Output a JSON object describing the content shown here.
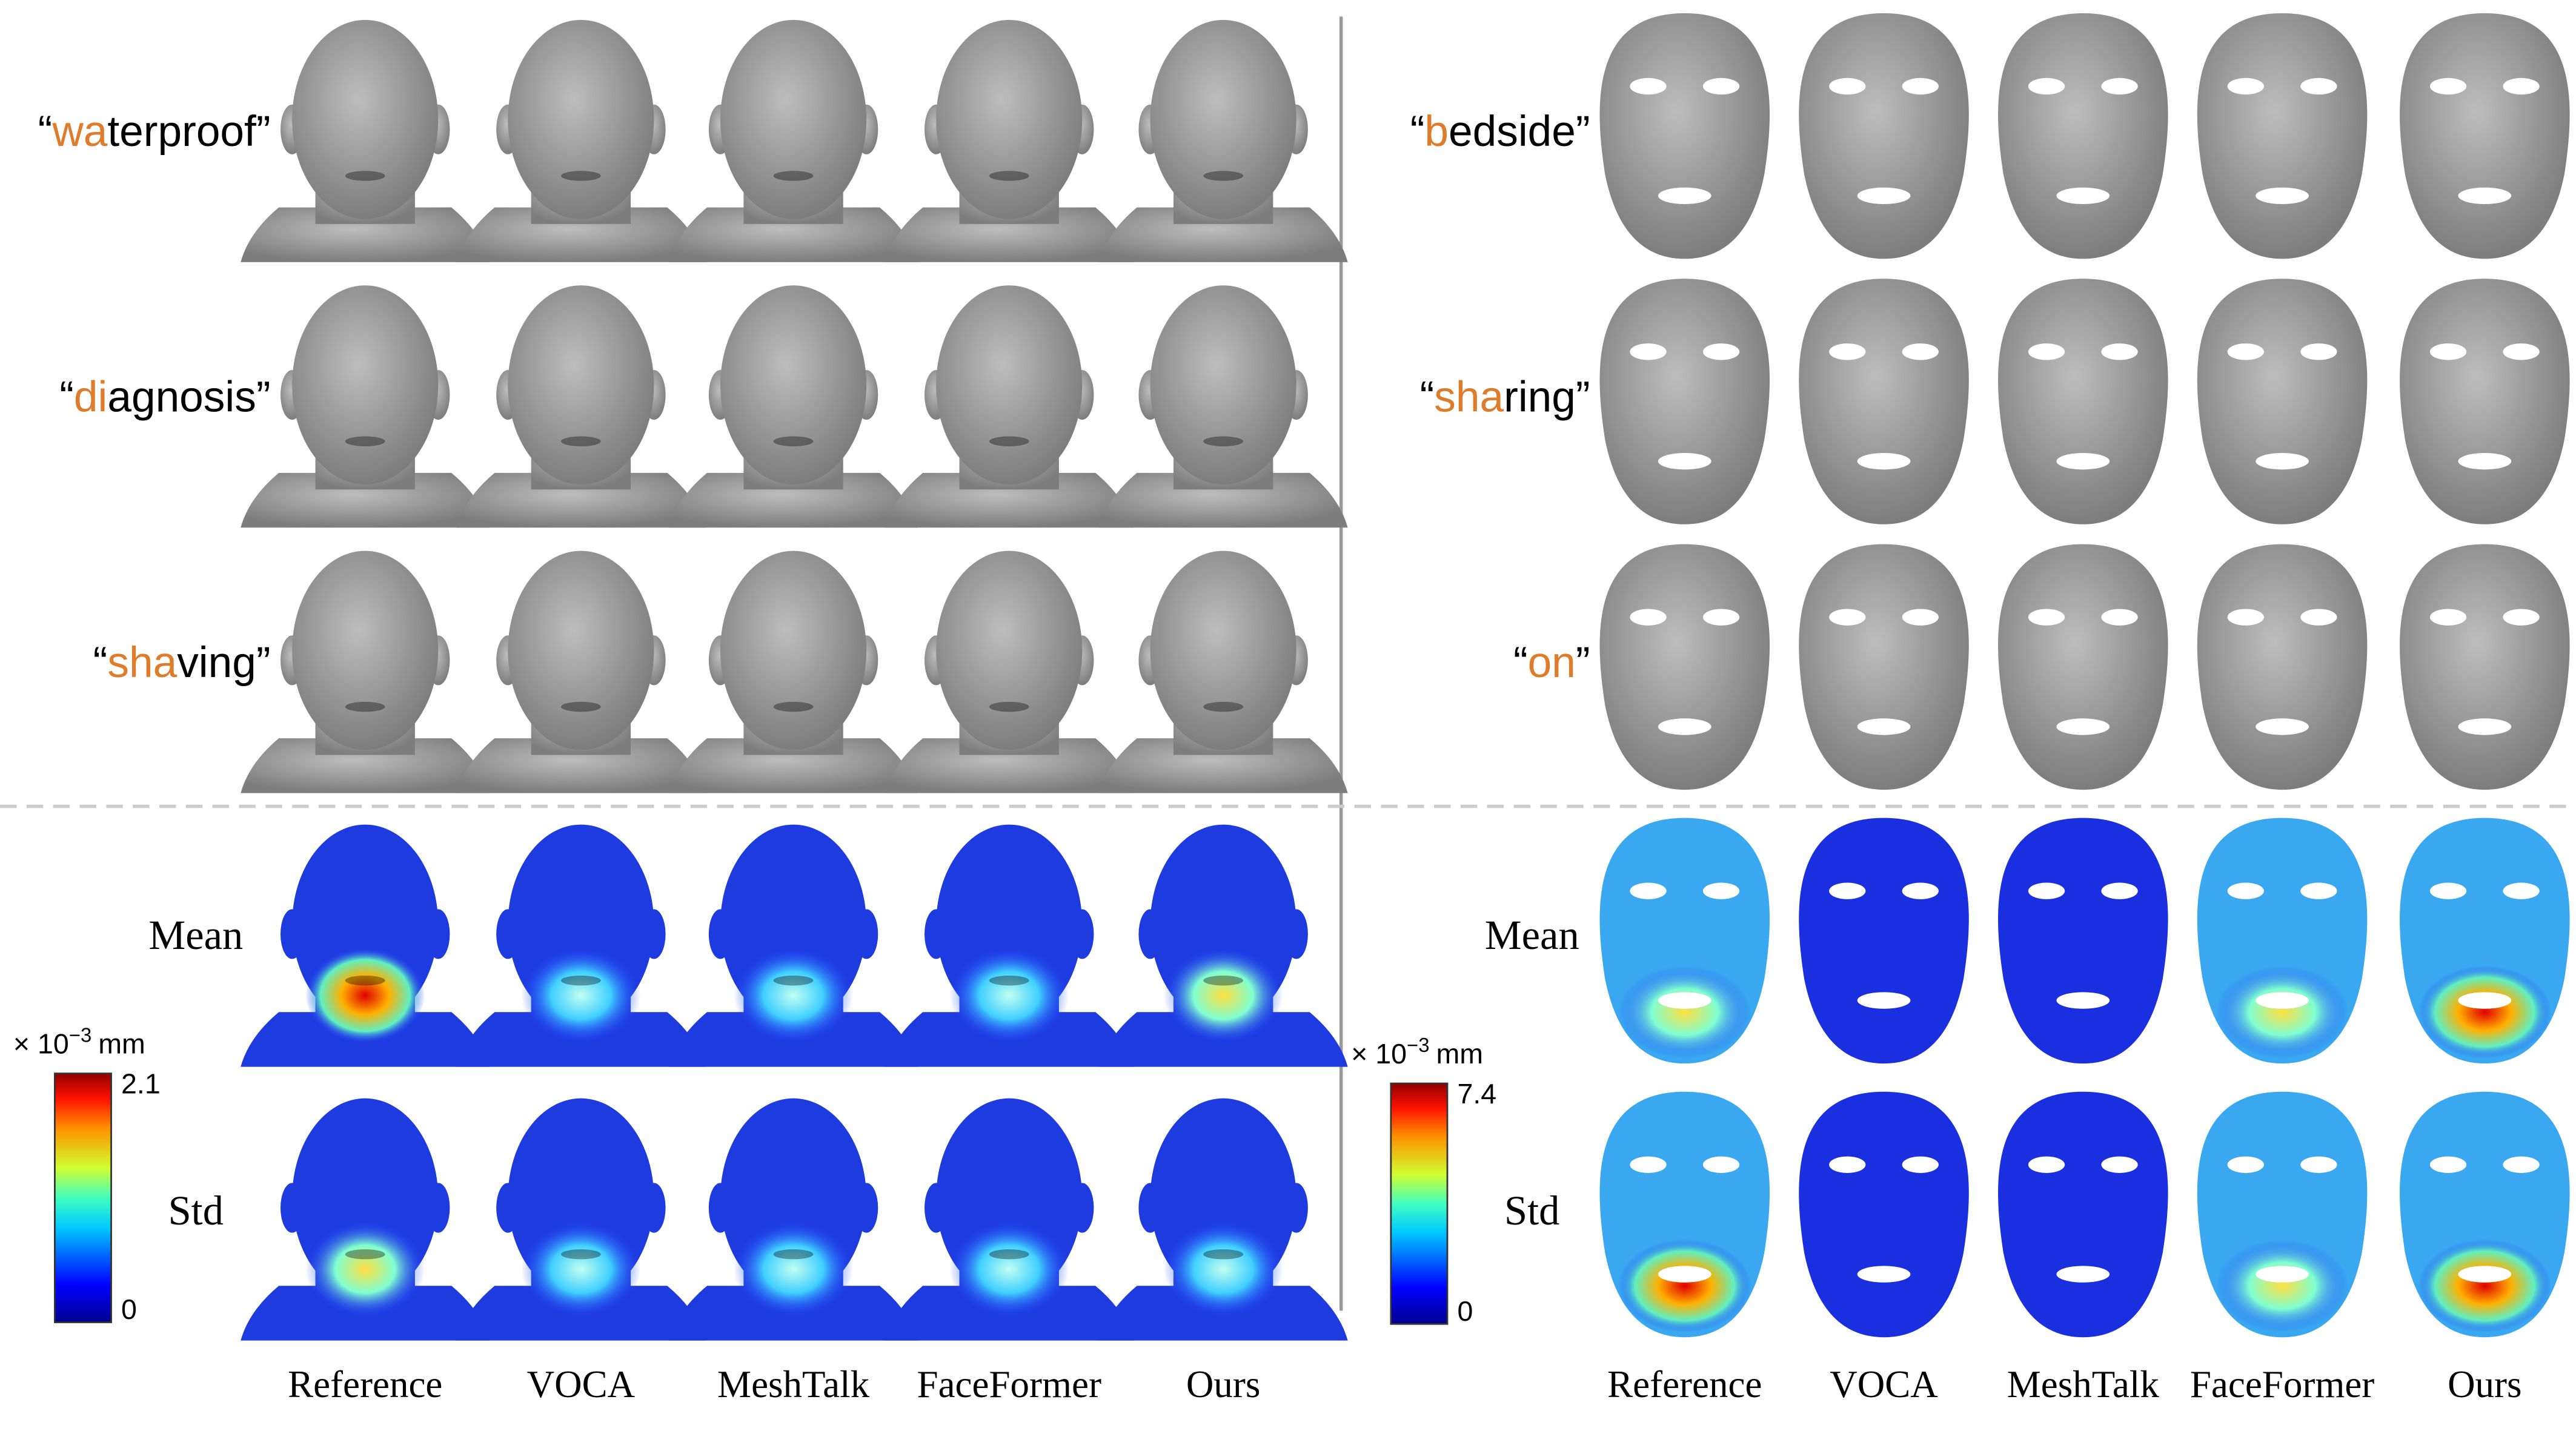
{
  "open_quote": "“",
  "close_quote": "”",
  "methods": [
    "Reference",
    "VOCA",
    "MeshTalk",
    "FaceFormer",
    "Ours"
  ],
  "left_panel": {
    "words": [
      {
        "highlight": "wa",
        "rest": "terproof"
      },
      {
        "highlight": "di",
        "rest": "agnosis"
      },
      {
        "highlight": "sha",
        "rest": "ving"
      }
    ],
    "metrics": [
      "Mean",
      "Std"
    ],
    "colorbar": {
      "unit_prefix": "× 10",
      "unit_exponent": "−3",
      "unit_suffix": "mm",
      "max": "2.1",
      "min": "0"
    }
  },
  "right_panel": {
    "words": [
      {
        "highlight": "b",
        "rest": "edside"
      },
      {
        "highlight": "sha",
        "rest": "ring"
      },
      {
        "highlight": "on",
        "rest": ""
      }
    ],
    "metrics": [
      "Mean",
      "Std"
    ],
    "colorbar": {
      "unit_prefix": "× 10",
      "unit_exponent": "−3",
      "unit_suffix": "mm",
      "max": "7.4",
      "min": "0"
    }
  }
}
